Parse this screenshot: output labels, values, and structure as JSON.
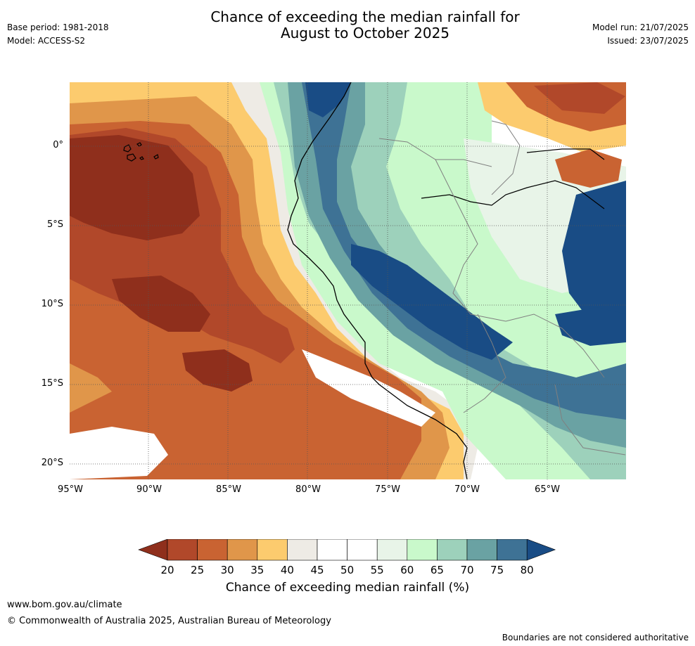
{
  "header": {
    "title_line1": "Chance of exceeding the median rainfall for",
    "title_line2": "August to October 2025",
    "base_period": "Base period: 1981-2018",
    "model": "Model: ACCESS-S2",
    "model_run": "Model run: 21/07/2025",
    "issued": "Issued: 23/07/2025"
  },
  "map": {
    "lat_labels": [
      "0°",
      "5°S",
      "10°S",
      "15°S",
      "20°S"
    ],
    "lon_labels": [
      "95°W",
      "90°W",
      "85°W",
      "80°W",
      "75°W",
      "70°W",
      "65°W"
    ]
  },
  "colorbar": {
    "ticks": [
      "20",
      "25",
      "30",
      "35",
      "40",
      "45",
      "50",
      "55",
      "60",
      "65",
      "70",
      "75",
      "80"
    ],
    "colors": [
      "#8f2f1c",
      "#b1482a",
      "#c96332",
      "#e0964a",
      "#fccb6e",
      "#eeebe5",
      "#ffffff",
      "#ffffff",
      "#e8f4e8",
      "#c9f9cb",
      "#9dd1bb",
      "#6aa2a3",
      "#3e7295",
      "#194c85"
    ],
    "label": "Chance of exceeding median rainfall (%)"
  },
  "footer": {
    "url": "www.bom.gov.au/climate",
    "copyright": "© Commonwealth of Australia 2025, Australian Bureau of Meteorology",
    "note": "Boundaries are not considered authoritative"
  }
}
